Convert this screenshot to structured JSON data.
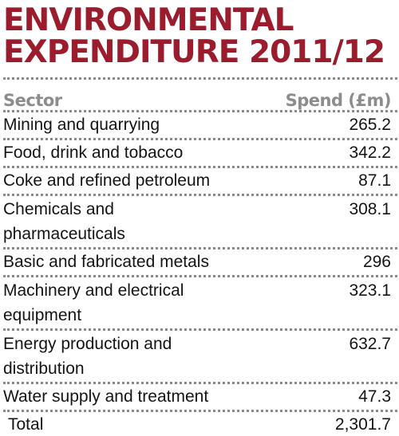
{
  "title": {
    "line1": "ENVIRONMENTAL",
    "line2": "EXPENDITURE 2011/12"
  },
  "table": {
    "header": {
      "sector": "Sector",
      "spend": "Spend (£m)"
    },
    "rows": [
      {
        "sector": "Mining and quarrying",
        "spend": "265.2"
      },
      {
        "sector": "Food, drink and tobacco",
        "spend": "342.2"
      },
      {
        "sector": "Coke and refined petroleum",
        "spend": "87.1"
      },
      {
        "sector": "Chemicals and pharmaceuticals",
        "spend": "308.1"
      },
      {
        "sector": "Basic and fabricated metals",
        "spend": "296"
      },
      {
        "sector": "Machinery and electrical equipment",
        "spend": "323.1"
      },
      {
        "sector": "Energy production and distribution",
        "spend": "632.7"
      },
      {
        "sector": "Water supply and treatment",
        "spend": "47.3"
      }
    ],
    "total": {
      "label": "Total",
      "value": "2,301.7"
    }
  }
}
